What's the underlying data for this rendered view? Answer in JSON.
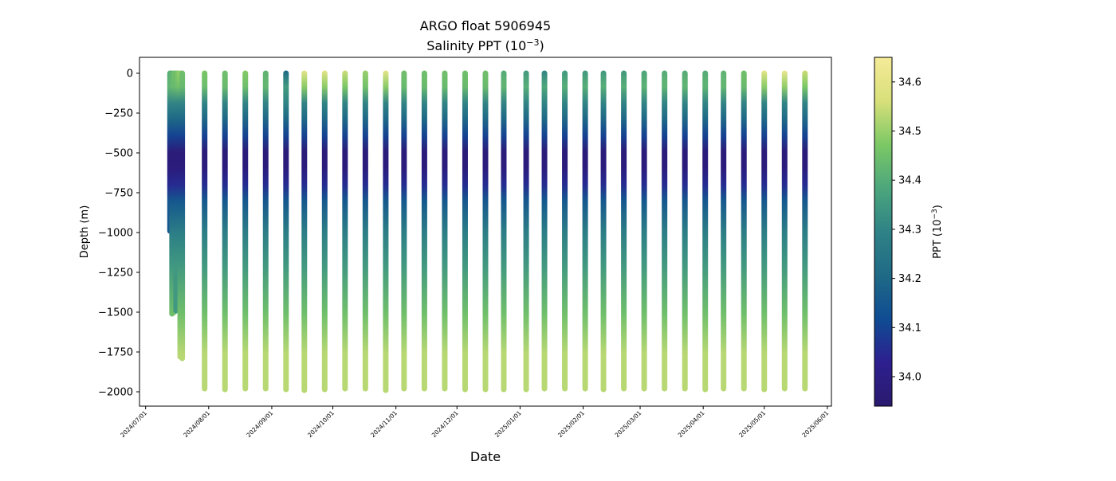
{
  "chart_data": {
    "type": "scatter",
    "title": "ARGO float 5906945",
    "subtitle_main": "Salinity PPT (10",
    "subtitle_exp": "−3",
    "subtitle_end": ")",
    "xlabel": "Date",
    "ylabel": "Depth (m)",
    "xlim": [
      "2024-06-28",
      "2025-06-03"
    ],
    "ylim": [
      -2090,
      100
    ],
    "x_ticks": [
      "2024/07/01",
      "2024/08/01",
      "2024/09/01",
      "2024/10/01",
      "2024/11/01",
      "2024/12/01",
      "2025/01/01",
      "2025/02/01",
      "2025/03/01",
      "2025/04/01",
      "2025/05/01",
      "2025/06/01"
    ],
    "y_ticks": [
      0,
      -250,
      -500,
      -750,
      -1000,
      -1250,
      -1500,
      -1750,
      -2000
    ],
    "grid": false,
    "colorbar": {
      "label_main": "PPT (10",
      "label_exp": "−3",
      "label_end": ")",
      "range": [
        33.94,
        34.65
      ],
      "ticks": [
        "34.0",
        "34.1",
        "34.2",
        "34.3",
        "34.4",
        "34.5",
        "34.6"
      ],
      "colormap": [
        "#2a1a6e",
        "#2d1f8f",
        "#0f4c93",
        "#1f6a86",
        "#2f8286",
        "#4ca67c",
        "#7cc865",
        "#d8e07a",
        "#f5eb99"
      ]
    },
    "typical_profile": {
      "depth": [
        0,
        100,
        200,
        300,
        400,
        500,
        600,
        700,
        800,
        1000,
        1200,
        1500,
        1750,
        2000
      ],
      "salinity": [
        34.45,
        34.43,
        34.3,
        34.2,
        34.1,
        33.97,
        33.98,
        34.05,
        34.15,
        34.28,
        34.35,
        34.45,
        34.53,
        34.6
      ]
    },
    "profiles": [
      {
        "date": "2024-07-13",
        "max_depth": 990,
        "surface_salinity": 34.4
      },
      {
        "date": "2024-07-14",
        "max_depth": 1510,
        "surface_salinity": 34.42
      },
      {
        "date": "2024-07-15",
        "max_depth": 1500,
        "surface_salinity": 34.45
      },
      {
        "date": "2024-07-16",
        "max_depth": 1490,
        "surface_salinity": 34.45
      },
      {
        "date": "2024-07-17",
        "max_depth": 1480,
        "surface_salinity": 34.48
      },
      {
        "date": "2024-07-18",
        "max_depth": 1780,
        "surface_salinity": 34.5
      },
      {
        "date": "2024-07-19",
        "max_depth": 1790,
        "surface_salinity": 34.45
      },
      {
        "date": "2024-07-30",
        "max_depth": 1980,
        "surface_salinity": 34.47
      },
      {
        "date": "2024-08-09",
        "max_depth": 1985,
        "surface_salinity": 34.45
      },
      {
        "date": "2024-08-19",
        "max_depth": 1980,
        "surface_salinity": 34.48
      },
      {
        "date": "2024-08-29",
        "max_depth": 1980,
        "surface_salinity": 34.42
      },
      {
        "date": "2024-09-08",
        "max_depth": 1985,
        "surface_salinity": 34.2
      },
      {
        "date": "2024-09-17",
        "max_depth": 1990,
        "surface_salinity": 34.6
      },
      {
        "date": "2024-09-27",
        "max_depth": 1985,
        "surface_salinity": 34.6
      },
      {
        "date": "2024-10-07",
        "max_depth": 1980,
        "surface_salinity": 34.55
      },
      {
        "date": "2024-10-17",
        "max_depth": 1980,
        "surface_salinity": 34.5
      },
      {
        "date": "2024-10-27",
        "max_depth": 1990,
        "surface_salinity": 34.6
      },
      {
        "date": "2024-11-05",
        "max_depth": 1980,
        "surface_salinity": 34.45
      },
      {
        "date": "2024-11-15",
        "max_depth": 1980,
        "surface_salinity": 34.45
      },
      {
        "date": "2024-11-25",
        "max_depth": 1980,
        "surface_salinity": 34.45
      },
      {
        "date": "2024-12-05",
        "max_depth": 1985,
        "surface_salinity": 34.45
      },
      {
        "date": "2024-12-15",
        "max_depth": 1985,
        "surface_salinity": 34.45
      },
      {
        "date": "2024-12-24",
        "max_depth": 1985,
        "surface_salinity": 34.4
      },
      {
        "date": "2025-01-04",
        "max_depth": 1985,
        "surface_salinity": 34.35
      },
      {
        "date": "2025-01-13",
        "max_depth": 1980,
        "surface_salinity": 34.3
      },
      {
        "date": "2025-01-23",
        "max_depth": 1980,
        "surface_salinity": 34.35
      },
      {
        "date": "2025-02-02",
        "max_depth": 1980,
        "surface_salinity": 34.35
      },
      {
        "date": "2025-02-11",
        "max_depth": 1985,
        "surface_salinity": 34.35
      },
      {
        "date": "2025-02-21",
        "max_depth": 1980,
        "surface_salinity": 34.35
      },
      {
        "date": "2025-03-03",
        "max_depth": 1980,
        "surface_salinity": 34.38
      },
      {
        "date": "2025-03-13",
        "max_depth": 1980,
        "surface_salinity": 34.4
      },
      {
        "date": "2025-03-23",
        "max_depth": 1980,
        "surface_salinity": 34.4
      },
      {
        "date": "2025-04-02",
        "max_depth": 1985,
        "surface_salinity": 34.4
      },
      {
        "date": "2025-04-11",
        "max_depth": 1980,
        "surface_salinity": 34.42
      },
      {
        "date": "2025-04-21",
        "max_depth": 1980,
        "surface_salinity": 34.45
      },
      {
        "date": "2025-05-01",
        "max_depth": 1985,
        "surface_salinity": 34.6
      },
      {
        "date": "2025-05-11",
        "max_depth": 1980,
        "surface_salinity": 34.62
      },
      {
        "date": "2025-05-21",
        "max_depth": 1980,
        "surface_salinity": 34.55
      }
    ]
  }
}
